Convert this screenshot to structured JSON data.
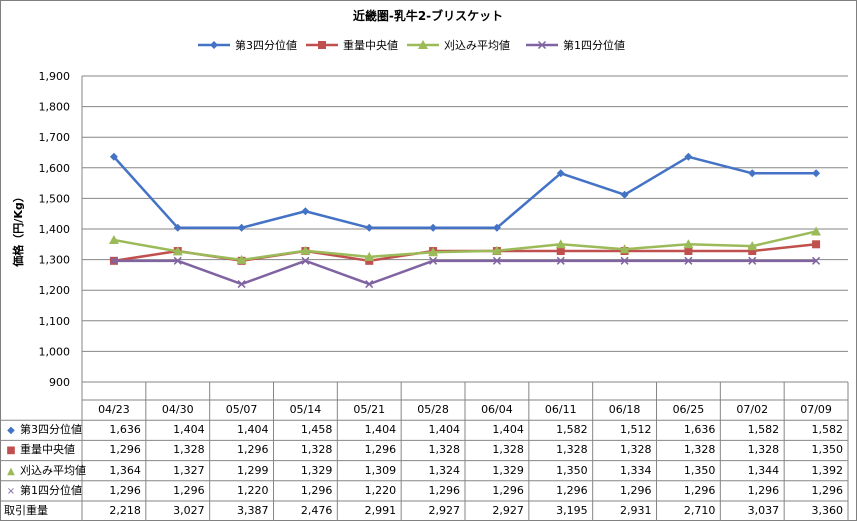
{
  "chart_data": {
    "type": "line",
    "title": "近畿圏-乳牛2-ブリスケット",
    "ylabel": "価格（円/Kg）",
    "ylim": [
      900,
      1900
    ],
    "yticks": [
      "900",
      "1,000",
      "1,100",
      "1,200",
      "1,300",
      "1,400",
      "1,500",
      "1,600",
      "1,700",
      "1,800",
      "1,900"
    ],
    "grid": true,
    "legend_position": "top",
    "categories": [
      "04/23",
      "04/30",
      "05/07",
      "05/14",
      "05/21",
      "05/28",
      "06/04",
      "06/11",
      "06/18",
      "06/25",
      "07/02",
      "07/09"
    ],
    "series": [
      {
        "name": "第3四分位値",
        "color": "#4472c4",
        "marker": "diamond",
        "marker_symbol": "◆",
        "values": [
          1636,
          1404,
          1404,
          1458,
          1404,
          1404,
          1404,
          1582,
          1512,
          1636,
          1582,
          1582
        ],
        "labels": [
          "1,636",
          "1,404",
          "1,404",
          "1,458",
          "1,404",
          "1,404",
          "1,404",
          "1,582",
          "1,512",
          "1,636",
          "1,582",
          "1,582"
        ]
      },
      {
        "name": "重量中央値",
        "color": "#c0504d",
        "marker": "square",
        "marker_symbol": "■",
        "values": [
          1296,
          1328,
          1296,
          1328,
          1296,
          1328,
          1328,
          1328,
          1328,
          1328,
          1328,
          1350
        ],
        "labels": [
          "1,296",
          "1,328",
          "1,296",
          "1,328",
          "1,296",
          "1,328",
          "1,328",
          "1,328",
          "1,328",
          "1,328",
          "1,328",
          "1,350"
        ]
      },
      {
        "name": "刈込み平均値",
        "color": "#9bbb59",
        "marker": "triangle",
        "marker_symbol": "▲",
        "values": [
          1364,
          1327,
          1299,
          1329,
          1309,
          1324,
          1329,
          1350,
          1334,
          1350,
          1344,
          1392
        ],
        "labels": [
          "1,364",
          "1,327",
          "1,299",
          "1,329",
          "1,309",
          "1,324",
          "1,329",
          "1,350",
          "1,334",
          "1,350",
          "1,344",
          "1,392"
        ]
      },
      {
        "name": "第1四分位値",
        "color": "#8064a2",
        "marker": "x",
        "marker_symbol": "×",
        "values": [
          1296,
          1296,
          1220,
          1296,
          1220,
          1296,
          1296,
          1296,
          1296,
          1296,
          1296,
          1296
        ],
        "labels": [
          "1,296",
          "1,296",
          "1,220",
          "1,296",
          "1,220",
          "1,296",
          "1,296",
          "1,296",
          "1,296",
          "1,296",
          "1,296",
          "1,296"
        ]
      }
    ],
    "table_extra_row": {
      "name": "取引重量",
      "values": [
        2218,
        3027,
        3387,
        2476,
        2991,
        2927,
        2927,
        3195,
        2931,
        2710,
        3037,
        3360
      ],
      "labels": [
        "2,218",
        "3,027",
        "3,387",
        "2,476",
        "2,991",
        "2,927",
        "2,927",
        "3,195",
        "2,931",
        "2,710",
        "3,037",
        "3,360"
      ]
    }
  }
}
